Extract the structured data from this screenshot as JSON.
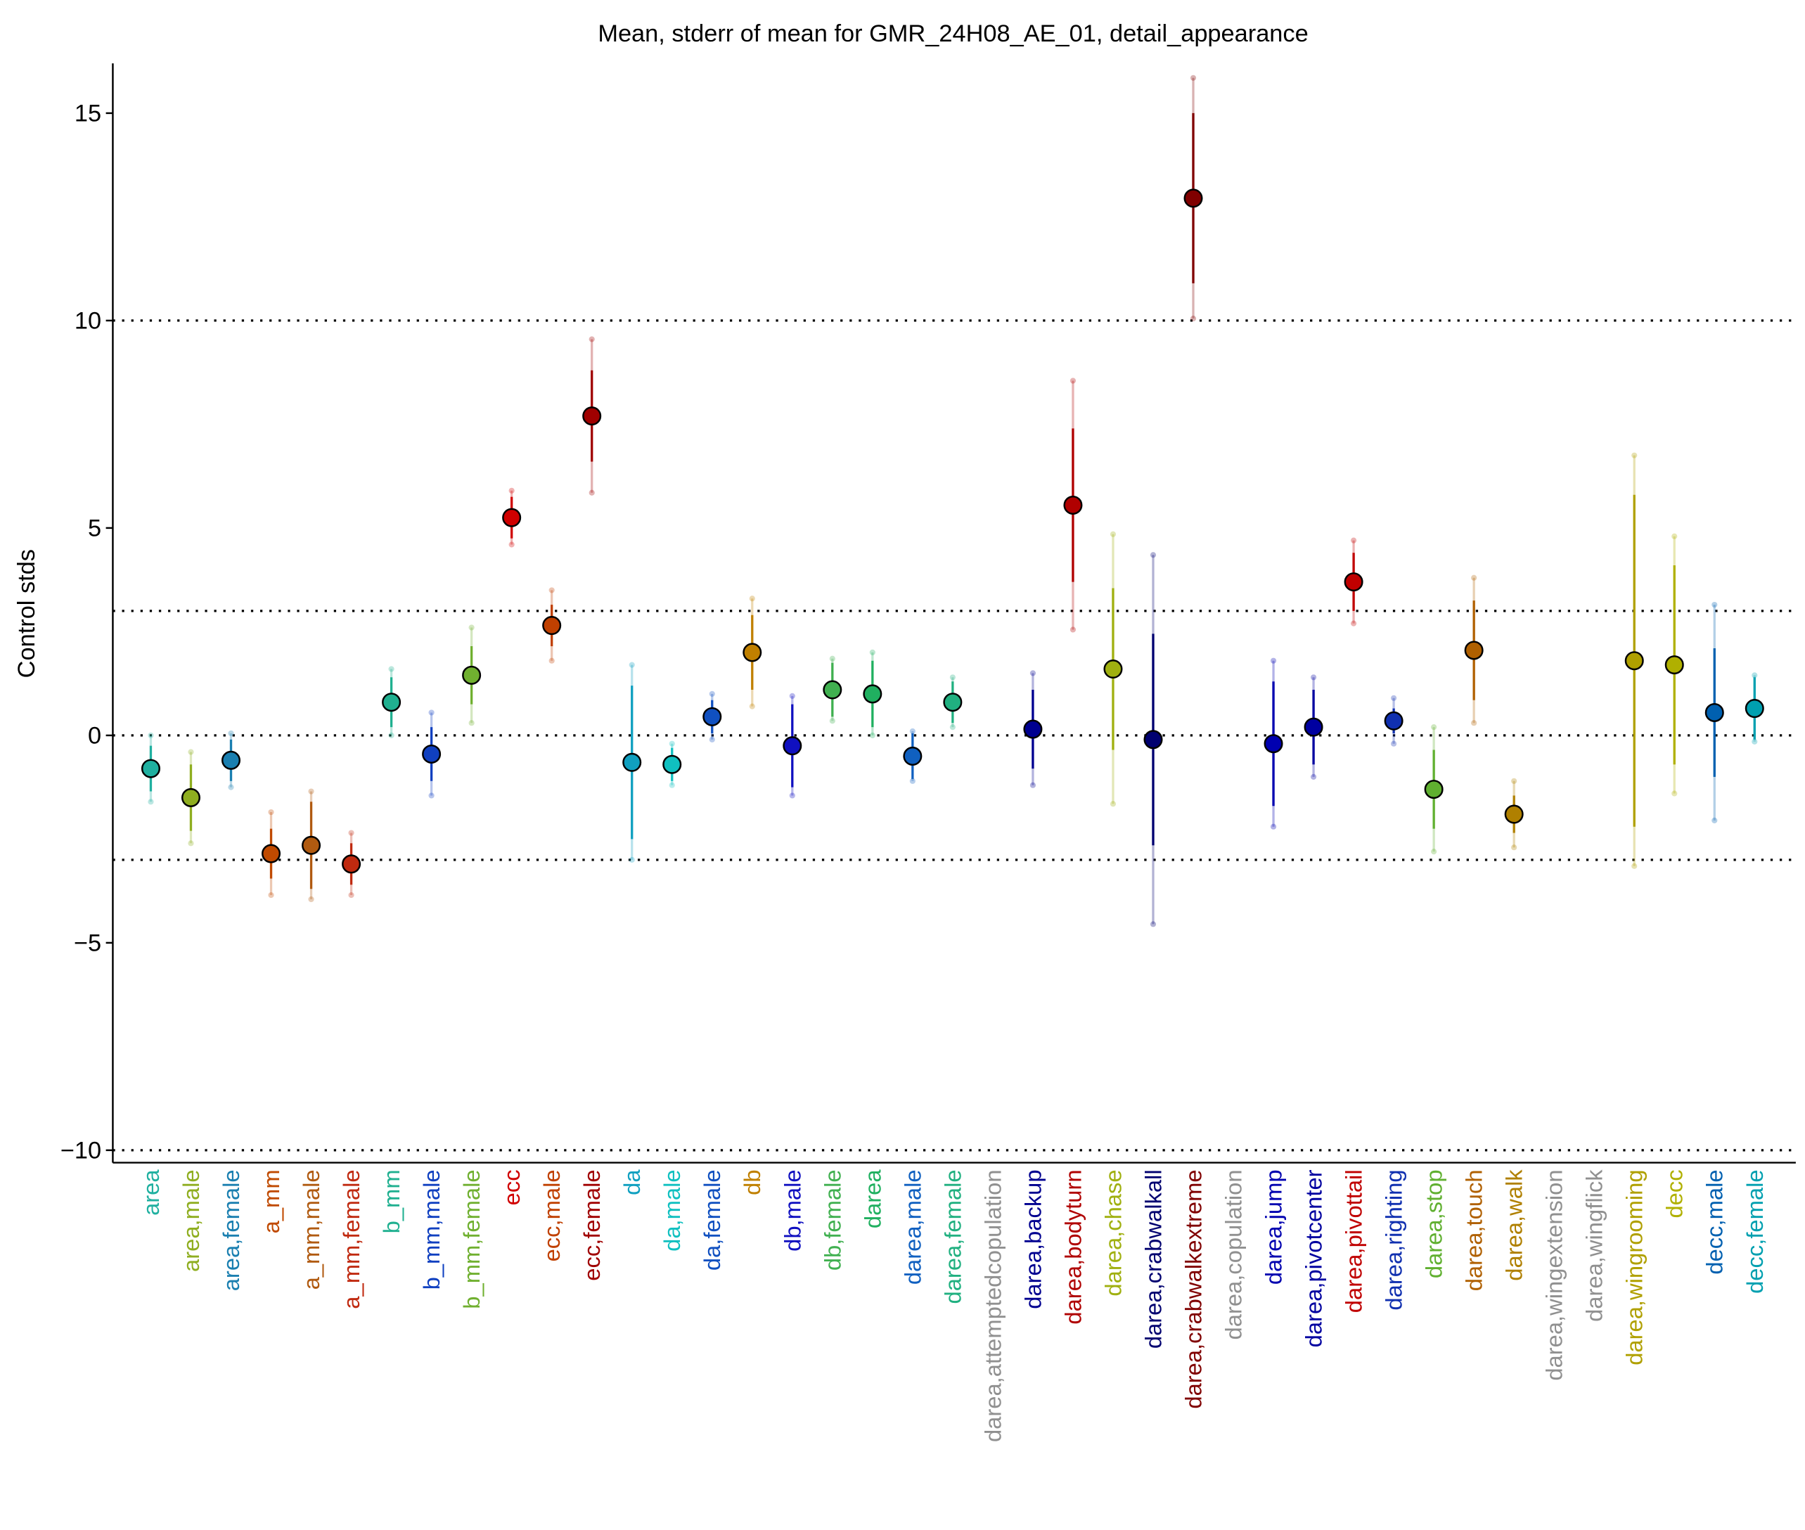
{
  "chart_data": {
    "type": "errorbar",
    "title": "Mean, stderr of mean for GMR_24H08_AE_01, detail_appearance",
    "ylabel": "Control stds",
    "categories": [
      "area",
      "area,male",
      "area,female",
      "a_mm",
      "a_mm,male",
      "a_mm,female",
      "b_mm",
      "b_mm,male",
      "b_mm,female",
      "ecc",
      "ecc,male",
      "ecc,female",
      "da",
      "da,male",
      "da,female",
      "db",
      "db,male",
      "db,female",
      "darea",
      "darea,male",
      "darea,female",
      "darea,attemptedcopulation",
      "darea,backup",
      "darea,bodyturn",
      "darea,chase",
      "darea,crabwalkall",
      "darea,crabwalkextreme",
      "darea,copulation",
      "darea,jump",
      "darea,pivotcenter",
      "darea,pivottail",
      "darea,righting",
      "darea,stop",
      "darea,touch",
      "darea,walk",
      "darea,wingextension",
      "darea,wingflick",
      "darea,wingrooming",
      "decc",
      "decc,male",
      "decc,female"
    ],
    "values": [
      -0.8,
      -1.5,
      -0.6,
      -2.85,
      -2.65,
      -3.1,
      0.8,
      -0.45,
      1.45,
      5.25,
      2.65,
      7.7,
      -0.65,
      -0.7,
      0.45,
      2.0,
      -0.25,
      1.1,
      1.0,
      -0.5,
      0.8,
      null,
      0.15,
      5.55,
      1.6,
      -0.1,
      12.95,
      null,
      -0.2,
      0.2,
      3.7,
      0.35,
      -1.3,
      2.05,
      -1.9,
      null,
      null,
      1.8,
      1.7,
      0.55,
      0.65
    ],
    "errors": [
      0.55,
      0.8,
      0.5,
      0.6,
      1.05,
      0.5,
      0.6,
      0.65,
      0.7,
      0.5,
      0.5,
      1.1,
      1.85,
      0.4,
      0.4,
      0.9,
      1.0,
      0.65,
      0.8,
      0.55,
      0.5,
      null,
      0.95,
      1.85,
      1.95,
      2.55,
      2.05,
      null,
      1.5,
      0.9,
      0.7,
      0.3,
      0.95,
      1.2,
      0.45,
      null,
      null,
      4.0,
      2.4,
      1.55,
      0.75
    ],
    "outer_errors": [
      0.8,
      1.1,
      0.65,
      1.0,
      1.3,
      0.75,
      0.8,
      1.0,
      1.15,
      0.65,
      0.85,
      1.85,
      2.35,
      0.5,
      0.55,
      1.3,
      1.2,
      0.75,
      1.0,
      0.6,
      0.6,
      null,
      1.35,
      3.0,
      3.25,
      4.45,
      2.9,
      null,
      2.0,
      1.2,
      1.0,
      0.55,
      1.5,
      1.75,
      0.8,
      null,
      null,
      4.95,
      3.1,
      2.6,
      0.8
    ],
    "colors": [
      "#20b0a0",
      "#8fae20",
      "#1a7fb0",
      "#c04a00",
      "#b05a10",
      "#c02a10",
      "#20b090",
      "#1040c0",
      "#70b030",
      "#d00000",
      "#c04000",
      "#a00000",
      "#10a0c0",
      "#10c0c0",
      "#1050c0",
      "#c08000",
      "#1010c0",
      "#40b050",
      "#20b060",
      "#1060c0",
      "#20b080",
      "#909090",
      "#000090",
      "#b00000",
      "#a0b010",
      "#000070",
      "#800000",
      "#909090",
      "#0000b0",
      "#0000a0",
      "#c00000",
      "#1030b0",
      "#60b030",
      "#b06000",
      "#b08000",
      "#909090",
      "#909090",
      "#b0a000",
      "#b0b000",
      "#0060b0",
      "#00a0b0"
    ],
    "ylim": [
      -10.3,
      16.2
    ],
    "yticks": [
      15,
      10,
      5,
      0,
      {
        "value": -5,
        "label": "−5"
      },
      {
        "value": -10,
        "label": "−10"
      }
    ],
    "hlines": [
      10,
      3,
      0,
      -3,
      -10
    ]
  }
}
